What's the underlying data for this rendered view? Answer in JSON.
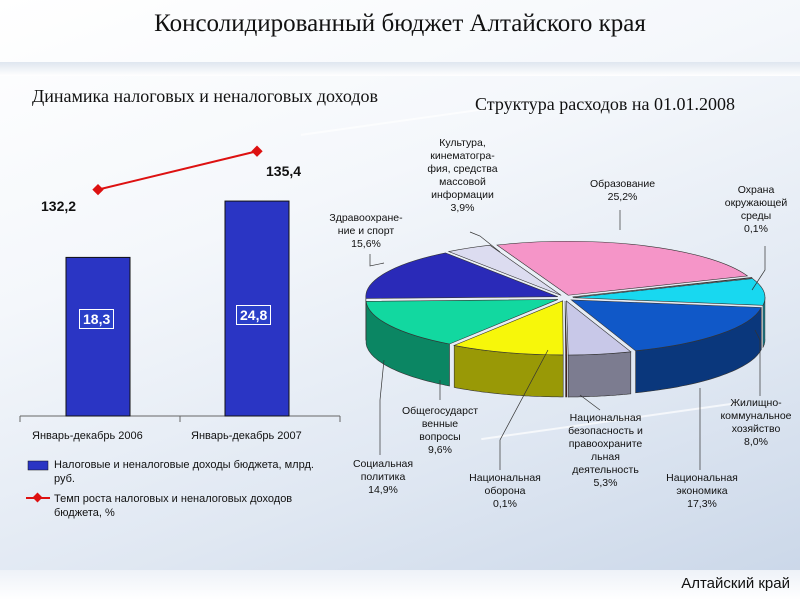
{
  "title": "Консолидированный бюджет Алтайского края",
  "footer": "Алтайский край",
  "bar_chart": {
    "title": "Динамика налоговых и неналоговых доходов",
    "legend": {
      "bar": "Налоговые и неналоговые доходы бюджета, млрд. руб.",
      "line": "Темп роста налоговых и неналоговых доходов бюджета, %"
    },
    "colors": {
      "bar": "#2a35c4",
      "line": "#dd1111"
    }
  },
  "pie_chart": {
    "title": "Структура расходов на 01.01.2008"
  },
  "chart_data": [
    {
      "type": "bar",
      "categories": [
        "Январь-декабрь 2006",
        "Январь-декабрь 2007"
      ],
      "series": [
        {
          "name": "Налоговые и неналоговые доходы бюджета, млрд. руб.",
          "values": [
            18.3,
            24.8
          ],
          "labels": [
            "18,3",
            "24,8"
          ]
        },
        {
          "name": "Темп роста налоговых и неналоговых доходов бюджета, %",
          "values": [
            132.2,
            135.4
          ],
          "labels": [
            "132,2",
            "135,4"
          ],
          "type": "line"
        }
      ],
      "title": "Динамика налоговых и неналоговых доходов"
    },
    {
      "type": "pie",
      "title": "Структура расходов на 01.01.2008",
      "slices": [
        {
          "label": "Образование\n25,2%",
          "value": 25.2,
          "color": "#f595c8"
        },
        {
          "label": "Охрана\nокружающей\nсреды\n0,1%",
          "value": 0.1,
          "color": "#9a1a8a"
        },
        {
          "label": "Жилищно-\nкоммунальное\nхозяйство\n8,0%",
          "value": 8.0,
          "color": "#18d8f0"
        },
        {
          "label": "Национальная\nэкономика\n17,3%",
          "value": 17.3,
          "color": "#1058c8"
        },
        {
          "label": "Национальная\nбезопасность и\nправоохраните\nльная\nдеятельность\n5,3%",
          "value": 5.3,
          "color": "#c8c8e8"
        },
        {
          "label": "Национальная\nоборона\n0,1%",
          "value": 0.1,
          "color": "#7a1010"
        },
        {
          "label": "Общегосударст\nвенные\nвопросы\n9,6%",
          "value": 9.6,
          "color": "#f7f70a"
        },
        {
          "label": "Социальная\nполитика\n14,9%",
          "value": 14.9,
          "color": "#12d8a0"
        },
        {
          "label": "Здравоохране-\nние и спорт\n15,6%",
          "value": 15.6,
          "color": "#2a2ab8"
        },
        {
          "label": "Культура,\nкинематогра-\nфия, средства\nмассовой\nинформации\n3,9%",
          "value": 3.9,
          "color": "#dcdcf0"
        }
      ]
    }
  ]
}
